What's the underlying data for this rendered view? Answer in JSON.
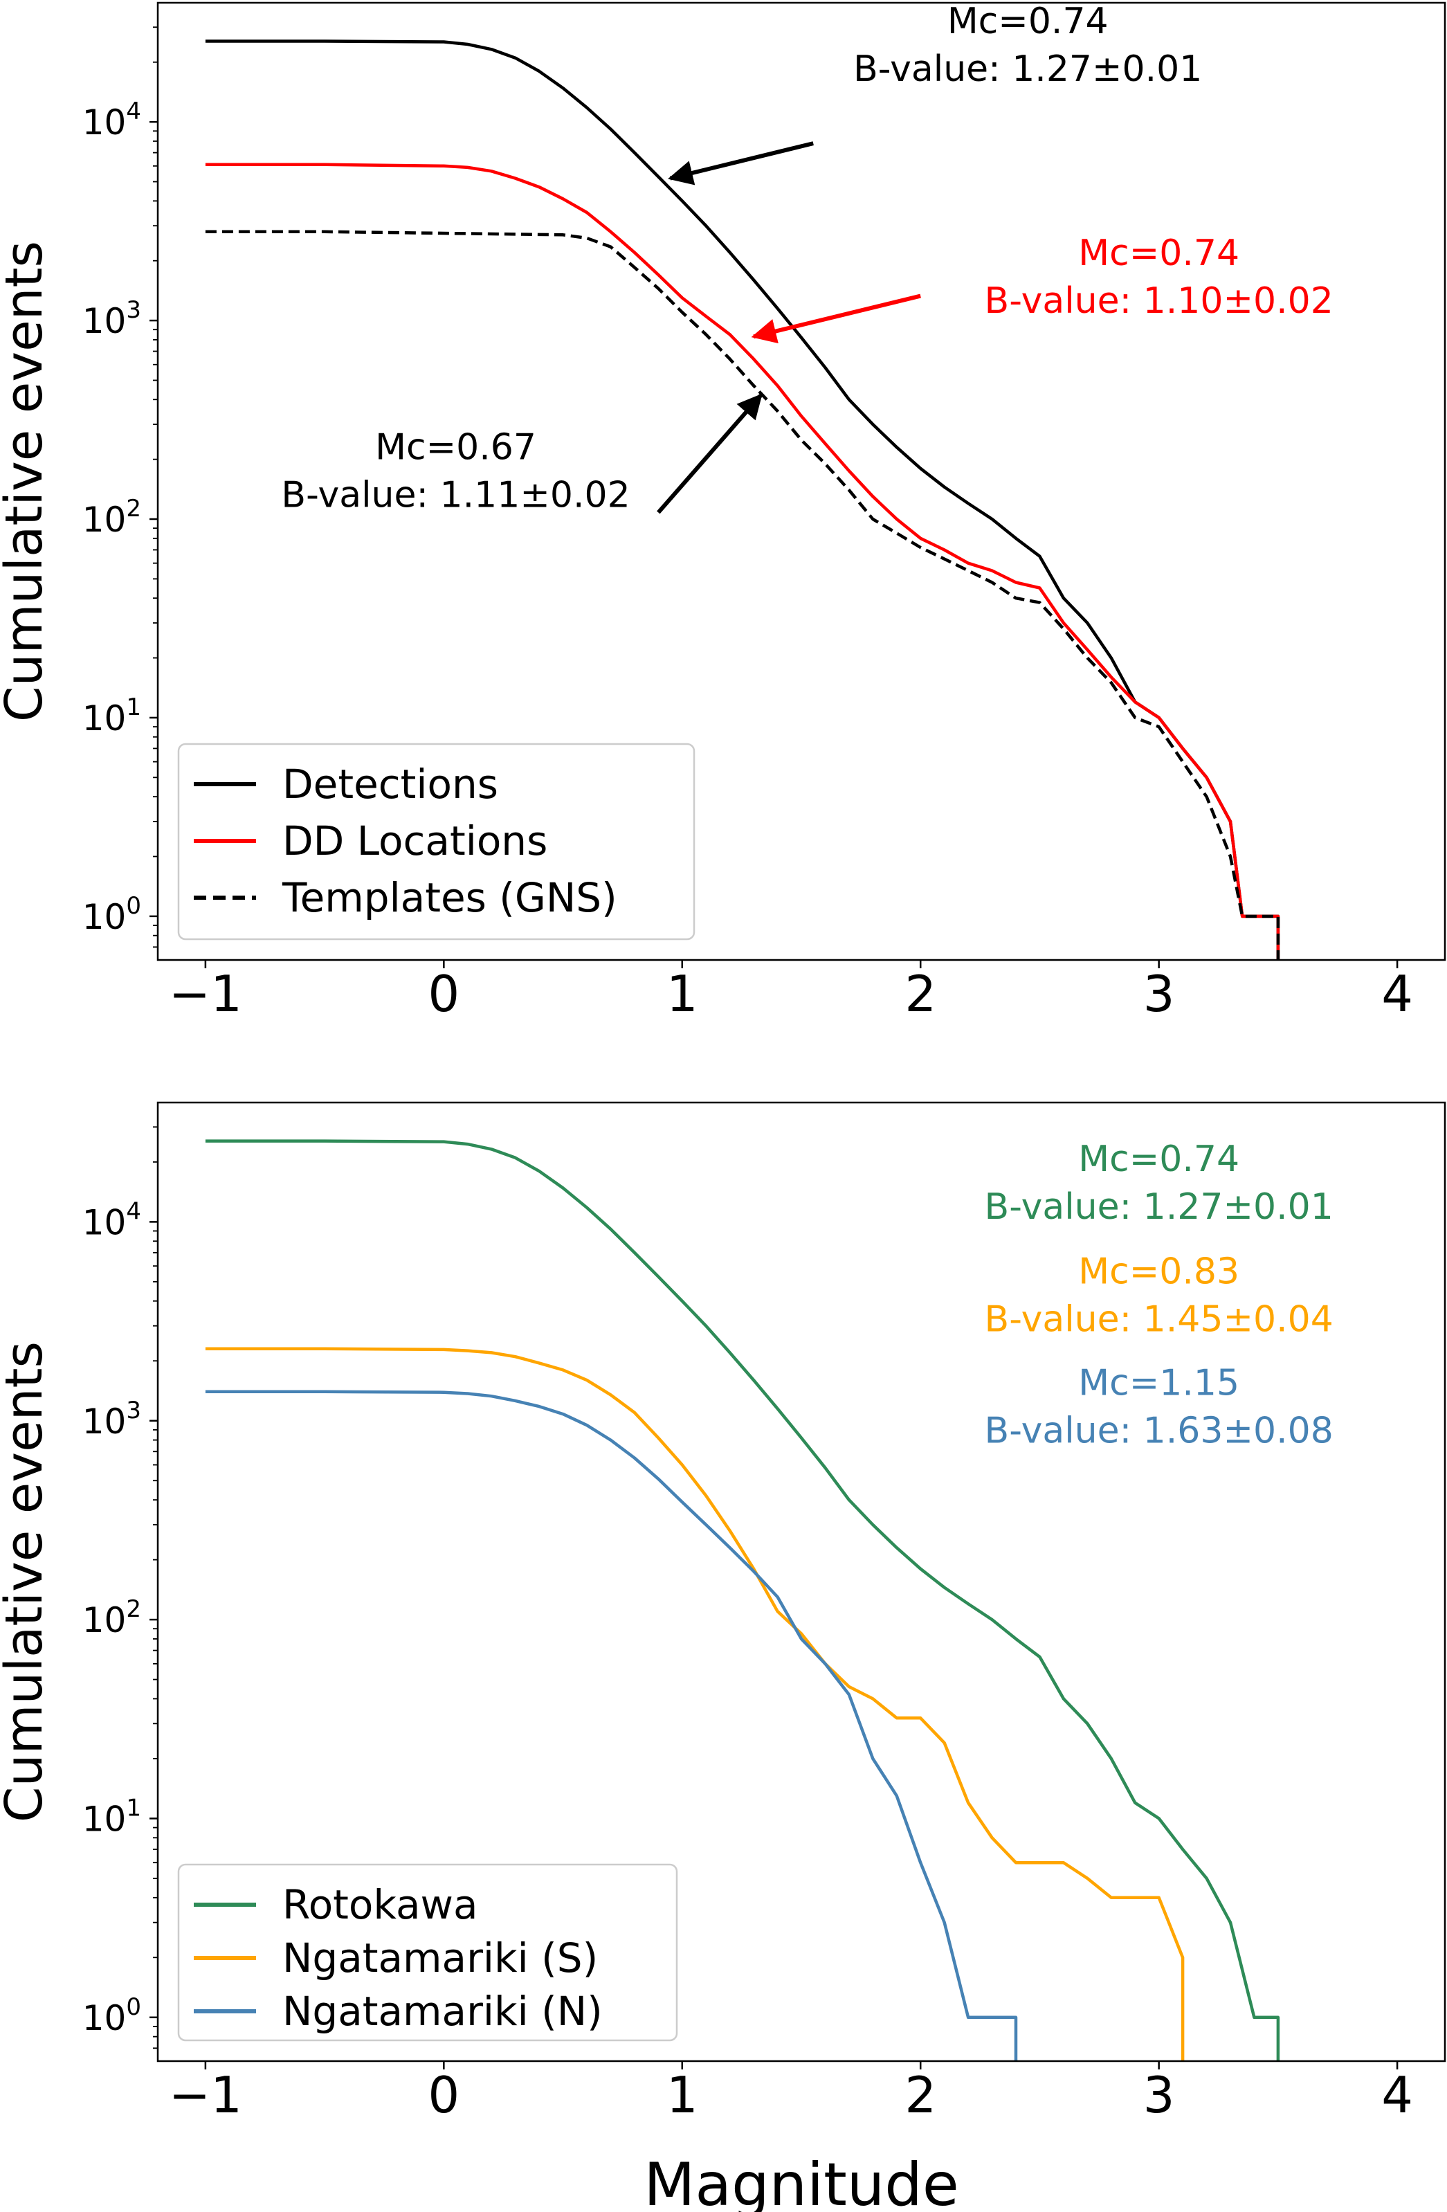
{
  "chart_data": [
    {
      "type": "line",
      "panel": "top",
      "title": "",
      "xlabel": "",
      "ylabel": "Cumulative events",
      "xlim": [
        -1.2,
        4.2
      ],
      "ylim_log10": [
        -0.22,
        4.6
      ],
      "y_scale": "log",
      "grid": false,
      "legend_position": "lower-left",
      "x_ticks": [
        {
          "value": -1,
          "label": "−1"
        },
        {
          "value": 0,
          "label": "0"
        },
        {
          "value": 1,
          "label": "1"
        },
        {
          "value": 2,
          "label": "2"
        },
        {
          "value": 3,
          "label": "3"
        },
        {
          "value": 4,
          "label": "4"
        }
      ],
      "y_ticks": [
        {
          "exp": 0,
          "base": "10",
          "sup": "0"
        },
        {
          "exp": 1,
          "base": "10",
          "sup": "1"
        },
        {
          "exp": 2,
          "base": "10",
          "sup": "2"
        },
        {
          "exp": 3,
          "base": "10",
          "sup": "3"
        },
        {
          "exp": 4,
          "base": "10",
          "sup": "4"
        }
      ],
      "series": [
        {
          "name": "Detections",
          "color": "#000000",
          "dash": "solid",
          "points": [
            [
              -1,
              25500
            ],
            [
              -0.5,
              25500
            ],
            [
              0,
              25300
            ],
            [
              0.1,
              24600
            ],
            [
              0.2,
              23200
            ],
            [
              0.3,
              21000
            ],
            [
              0.4,
              18000
            ],
            [
              0.5,
              14800
            ],
            [
              0.6,
              11800
            ],
            [
              0.7,
              9200
            ],
            [
              0.8,
              7000
            ],
            [
              0.9,
              5300
            ],
            [
              1.0,
              4000
            ],
            [
              1.1,
              3000
            ],
            [
              1.2,
              2200
            ],
            [
              1.3,
              1600
            ],
            [
              1.4,
              1150
            ],
            [
              1.5,
              820
            ],
            [
              1.6,
              580
            ],
            [
              1.7,
              400
            ],
            [
              1.8,
              300
            ],
            [
              1.9,
              230
            ],
            [
              2.0,
              180
            ],
            [
              2.1,
              145
            ],
            [
              2.2,
              120
            ],
            [
              2.3,
              100
            ],
            [
              2.4,
              80
            ],
            [
              2.5,
              65
            ],
            [
              2.6,
              40
            ],
            [
              2.7,
              30
            ],
            [
              2.8,
              20
            ],
            [
              2.9,
              12
            ],
            [
              3.0,
              10
            ],
            [
              3.1,
              7
            ],
            [
              3.2,
              5
            ],
            [
              3.3,
              3
            ],
            [
              3.35,
              1
            ],
            [
              3.5,
              1
            ],
            [
              3.5,
              0.6
            ]
          ]
        },
        {
          "name": "DD Locations",
          "color": "#ff0000",
          "dash": "solid",
          "points": [
            [
              -1,
              6100
            ],
            [
              -0.5,
              6100
            ],
            [
              0,
              6000
            ],
            [
              0.1,
              5900
            ],
            [
              0.2,
              5650
            ],
            [
              0.3,
              5200
            ],
            [
              0.4,
              4700
            ],
            [
              0.5,
              4100
            ],
            [
              0.6,
              3500
            ],
            [
              0.7,
              2800
            ],
            [
              0.8,
              2200
            ],
            [
              0.9,
              1700
            ],
            [
              1.0,
              1300
            ],
            [
              1.1,
              1050
            ],
            [
              1.2,
              850
            ],
            [
              1.3,
              640
            ],
            [
              1.4,
              470
            ],
            [
              1.5,
              330
            ],
            [
              1.6,
              240
            ],
            [
              1.7,
              175
            ],
            [
              1.8,
              130
            ],
            [
              1.9,
              100
            ],
            [
              2.0,
              80
            ],
            [
              2.1,
              70
            ],
            [
              2.2,
              60
            ],
            [
              2.3,
              55
            ],
            [
              2.4,
              48
            ],
            [
              2.5,
              45
            ],
            [
              2.6,
              30
            ],
            [
              2.7,
              22
            ],
            [
              2.8,
              16
            ],
            [
              2.9,
              12
            ],
            [
              3.0,
              10
            ],
            [
              3.1,
              7
            ],
            [
              3.2,
              5
            ],
            [
              3.3,
              3
            ],
            [
              3.35,
              1
            ],
            [
              3.5,
              1
            ],
            [
              3.5,
              0.6
            ]
          ]
        },
        {
          "name": "Templates (GNS)",
          "color": "#000000",
          "dash": "dashed",
          "points": [
            [
              -1,
              2800
            ],
            [
              -0.5,
              2800
            ],
            [
              0,
              2750
            ],
            [
              0.3,
              2720
            ],
            [
              0.5,
              2700
            ],
            [
              0.6,
              2600
            ],
            [
              0.7,
              2350
            ],
            [
              0.8,
              1850
            ],
            [
              0.9,
              1450
            ],
            [
              1.0,
              1100
            ],
            [
              1.1,
              850
            ],
            [
              1.2,
              640
            ],
            [
              1.3,
              470
            ],
            [
              1.4,
              350
            ],
            [
              1.5,
              250
            ],
            [
              1.6,
              190
            ],
            [
              1.7,
              140
            ],
            [
              1.8,
              100
            ],
            [
              1.9,
              85
            ],
            [
              2.0,
              72
            ],
            [
              2.1,
              63
            ],
            [
              2.2,
              55
            ],
            [
              2.3,
              48
            ],
            [
              2.4,
              40
            ],
            [
              2.5,
              38
            ],
            [
              2.6,
              28
            ],
            [
              2.7,
              20
            ],
            [
              2.8,
              15
            ],
            [
              2.9,
              10
            ],
            [
              3.0,
              9
            ],
            [
              3.1,
              6
            ],
            [
              3.2,
              4
            ],
            [
              3.3,
              2
            ],
            [
              3.35,
              1
            ],
            [
              3.5,
              1
            ],
            [
              3.5,
              0.6
            ]
          ]
        }
      ],
      "annotations": [
        {
          "lines": [
            "Mc=0.74",
            "B-value: 1.27±0.01"
          ],
          "color": "#000000",
          "text_mag": 2.45,
          "text_y": 28000,
          "arrow_from": [
            1.55,
            7800
          ],
          "arrow_to": [
            0.95,
            5200
          ]
        },
        {
          "lines": [
            "Mc=0.74",
            "B-value: 1.10±0.02"
          ],
          "color": "#ff0000",
          "text_mag": 3.0,
          "text_y": 1900,
          "arrow_from": [
            2.0,
            1330
          ],
          "arrow_to": [
            1.3,
            830
          ]
        },
        {
          "lines": [
            "Mc=0.67",
            "B-value: 1.11±0.02"
          ],
          "color": "#000000",
          "text_mag": 0.05,
          "text_y": 200,
          "arrow_from": [
            0.9,
            108
          ],
          "arrow_to": [
            1.33,
            420
          ]
        }
      ]
    },
    {
      "type": "line",
      "panel": "bottom",
      "title": "",
      "xlabel": "Magnitude",
      "ylabel": "Cumulative events",
      "xlim": [
        -1.2,
        4.2
      ],
      "ylim_log10": [
        -0.22,
        4.6
      ],
      "y_scale": "log",
      "grid": false,
      "legend_position": "lower-left",
      "x_ticks": [
        {
          "value": -1,
          "label": "−1"
        },
        {
          "value": 0,
          "label": "0"
        },
        {
          "value": 1,
          "label": "1"
        },
        {
          "value": 2,
          "label": "2"
        },
        {
          "value": 3,
          "label": "3"
        },
        {
          "value": 4,
          "label": "4"
        }
      ],
      "y_ticks": [
        {
          "exp": 0,
          "base": "10",
          "sup": "0"
        },
        {
          "exp": 1,
          "base": "10",
          "sup": "1"
        },
        {
          "exp": 2,
          "base": "10",
          "sup": "2"
        },
        {
          "exp": 3,
          "base": "10",
          "sup": "3"
        },
        {
          "exp": 4,
          "base": "10",
          "sup": "4"
        }
      ],
      "series": [
        {
          "name": "Rotokawa",
          "color": "#2e8b57",
          "dash": "solid",
          "points": [
            [
              -1,
              25500
            ],
            [
              -0.5,
              25500
            ],
            [
              0,
              25300
            ],
            [
              0.1,
              24600
            ],
            [
              0.2,
              23200
            ],
            [
              0.3,
              21000
            ],
            [
              0.4,
              18000
            ],
            [
              0.5,
              14800
            ],
            [
              0.6,
              11800
            ],
            [
              0.7,
              9200
            ],
            [
              0.8,
              7000
            ],
            [
              0.9,
              5300
            ],
            [
              1.0,
              4000
            ],
            [
              1.1,
              3000
            ],
            [
              1.2,
              2200
            ],
            [
              1.3,
              1600
            ],
            [
              1.4,
              1150
            ],
            [
              1.5,
              820
            ],
            [
              1.6,
              580
            ],
            [
              1.7,
              400
            ],
            [
              1.8,
              300
            ],
            [
              1.9,
              230
            ],
            [
              2.0,
              180
            ],
            [
              2.1,
              145
            ],
            [
              2.2,
              120
            ],
            [
              2.3,
              100
            ],
            [
              2.4,
              80
            ],
            [
              2.5,
              65
            ],
            [
              2.6,
              40
            ],
            [
              2.7,
              30
            ],
            [
              2.8,
              20
            ],
            [
              2.9,
              12
            ],
            [
              3.0,
              10
            ],
            [
              3.1,
              7
            ],
            [
              3.2,
              5
            ],
            [
              3.3,
              3
            ],
            [
              3.4,
              1
            ],
            [
              3.5,
              1
            ],
            [
              3.5,
              0.6
            ]
          ]
        },
        {
          "name": "Ngatamariki (S)",
          "color": "#ffa500",
          "dash": "solid",
          "points": [
            [
              -1,
              2300
            ],
            [
              -0.5,
              2300
            ],
            [
              0,
              2280
            ],
            [
              0.1,
              2250
            ],
            [
              0.2,
              2200
            ],
            [
              0.3,
              2100
            ],
            [
              0.4,
              1950
            ],
            [
              0.5,
              1800
            ],
            [
              0.6,
              1600
            ],
            [
              0.7,
              1350
            ],
            [
              0.8,
              1100
            ],
            [
              0.9,
              820
            ],
            [
              1.0,
              600
            ],
            [
              1.1,
              420
            ],
            [
              1.2,
              280
            ],
            [
              1.3,
              180
            ],
            [
              1.4,
              110
            ],
            [
              1.5,
              85
            ],
            [
              1.6,
              60
            ],
            [
              1.7,
              46
            ],
            [
              1.8,
              40
            ],
            [
              1.9,
              32
            ],
            [
              2.0,
              32
            ],
            [
              2.1,
              24
            ],
            [
              2.2,
              12
            ],
            [
              2.3,
              8
            ],
            [
              2.4,
              6
            ],
            [
              2.5,
              6
            ],
            [
              2.6,
              6
            ],
            [
              2.7,
              5
            ],
            [
              2.8,
              4
            ],
            [
              2.9,
              4
            ],
            [
              3.0,
              4
            ],
            [
              3.1,
              2
            ],
            [
              3.1,
              0.6
            ]
          ]
        },
        {
          "name": "Ngatamariki (N)",
          "color": "#4682b4",
          "dash": "solid",
          "points": [
            [
              -1,
              1400
            ],
            [
              -0.5,
              1400
            ],
            [
              0,
              1390
            ],
            [
              0.1,
              1370
            ],
            [
              0.2,
              1330
            ],
            [
              0.3,
              1260
            ],
            [
              0.4,
              1180
            ],
            [
              0.5,
              1080
            ],
            [
              0.6,
              950
            ],
            [
              0.7,
              800
            ],
            [
              0.8,
              650
            ],
            [
              0.9,
              510
            ],
            [
              1.0,
              390
            ],
            [
              1.1,
              300
            ],
            [
              1.2,
              230
            ],
            [
              1.3,
              175
            ],
            [
              1.4,
              130
            ],
            [
              1.5,
              80
            ],
            [
              1.6,
              60
            ],
            [
              1.7,
              42
            ],
            [
              1.8,
              20
            ],
            [
              1.9,
              13
            ],
            [
              2.0,
              6
            ],
            [
              2.1,
              3
            ],
            [
              2.2,
              1
            ],
            [
              2.4,
              1
            ],
            [
              2.4,
              0.6
            ]
          ]
        }
      ],
      "annotations": [
        {
          "lines": [
            "Mc=0.74",
            "B-value: 1.27±0.01"
          ],
          "color": "#2e8b57",
          "text_mag": 3.0,
          "text_y": 18000
        },
        {
          "lines": [
            "Mc=0.83",
            "B-value: 1.45±0.04"
          ],
          "color": "#ffa500",
          "text_mag": 3.0,
          "text_y": 4900
        },
        {
          "lines": [
            "Mc=1.15",
            "B-value: 1.63±0.08"
          ],
          "color": "#4682b4",
          "text_mag": 3.0,
          "text_y": 1350
        }
      ]
    }
  ]
}
